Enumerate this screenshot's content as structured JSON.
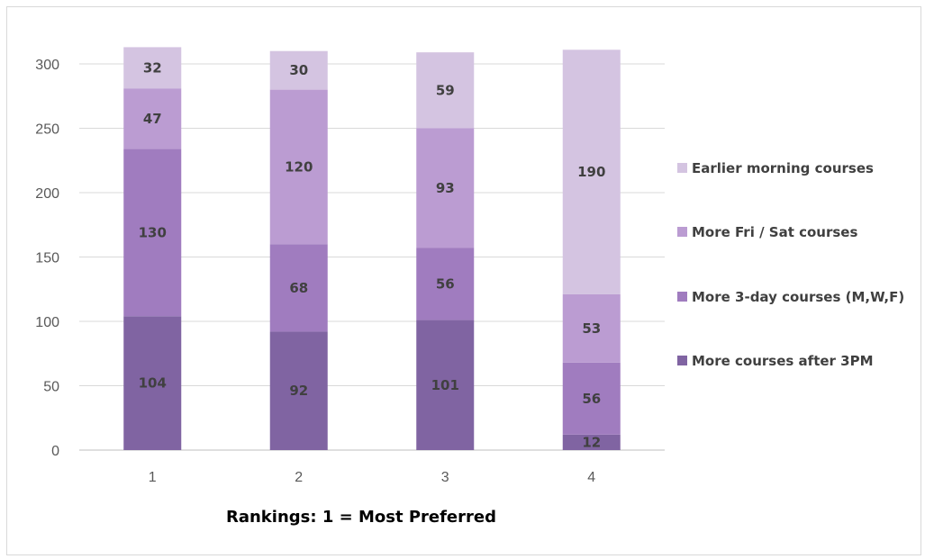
{
  "chart_data": {
    "type": "bar",
    "stacked": true,
    "categories": [
      "1",
      "2",
      "3",
      "4"
    ],
    "series": [
      {
        "name": "More courses after 3PM",
        "values": [
          104,
          92,
          101,
          12
        ],
        "color": "#8064a2"
      },
      {
        "name": "More 3-day courses (M,W,F)",
        "values": [
          130,
          68,
          56,
          56
        ],
        "color": "#a07cbf"
      },
      {
        "name": "More Fri / Sat courses",
        "values": [
          47,
          120,
          93,
          53
        ],
        "color": "#bb9cd2"
      },
      {
        "name": "Earlier morning courses",
        "values": [
          32,
          30,
          59,
          190
        ],
        "color": "#d4c4e1"
      }
    ],
    "title": "",
    "xlabel": "Rankings: 1 = Most Preferred",
    "ylabel": "",
    "ylim": [
      0,
      300
    ],
    "yticks": [
      0,
      50,
      100,
      150,
      200,
      250,
      300
    ],
    "grid": true,
    "legend_position": "right",
    "legend_order": [
      "Earlier morning courses",
      "More Fri / Sat courses",
      "More 3-day courses (M,W,F)",
      "More courses after 3PM"
    ]
  }
}
